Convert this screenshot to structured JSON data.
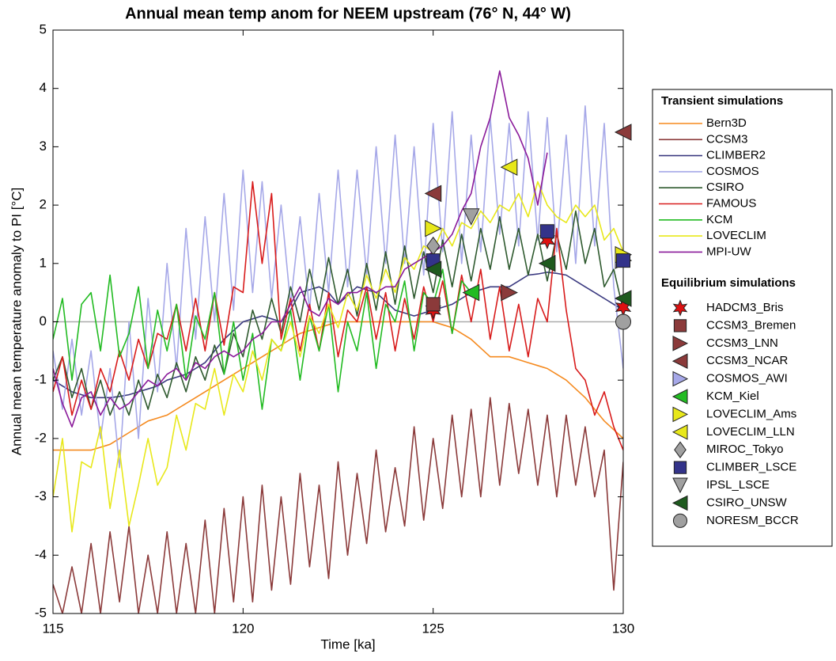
{
  "chart_data": {
    "type": "line",
    "title": "Annual mean temp anom for NEEM  upstream (76° N, 44° W)",
    "xlabel": "Time [ka]",
    "ylabel": "Annual mean temperature anomaly to PI [°C]",
    "xlim": [
      115,
      130
    ],
    "ylim": [
      -5,
      5
    ],
    "xticks": [
      115,
      120,
      125,
      130
    ],
    "yticks": [
      -5,
      -4,
      -3,
      -2,
      -1,
      0,
      1,
      2,
      3,
      4,
      5
    ],
    "reference_line": 0,
    "legend_position": "right",
    "legend_titles": [
      "Transient simulations",
      "Equilibrium simulations"
    ],
    "x": [
      115,
      115.25,
      115.5,
      115.75,
      116,
      116.25,
      116.5,
      116.75,
      117,
      117.25,
      117.5,
      117.75,
      118,
      118.25,
      118.5,
      118.75,
      119,
      119.25,
      119.5,
      119.75,
      120,
      120.25,
      120.5,
      120.75,
      121,
      121.25,
      121.5,
      121.75,
      122,
      122.25,
      122.5,
      122.75,
      123,
      123.25,
      123.5,
      123.75,
      124,
      124.25,
      124.5,
      124.75,
      125,
      125.25,
      125.5,
      125.75,
      126,
      126.25,
      126.5,
      126.75,
      127,
      127.25,
      127.5,
      127.75,
      128,
      128.25,
      128.5,
      128.75,
      129,
      129.25,
      129.5,
      129.75,
      130
    ],
    "series": [
      {
        "name": "Bern3D",
        "color": "#f58a1f",
        "values": [
          -2.2,
          -2.2,
          -2.2,
          -2.2,
          -2.2,
          -2.15,
          -2.1,
          -2.0,
          -1.9,
          -1.8,
          -1.7,
          -1.65,
          -1.6,
          -1.5,
          -1.4,
          -1.3,
          -1.2,
          -1.1,
          -1.0,
          -0.9,
          -0.8,
          -0.7,
          -0.6,
          -0.5,
          -0.4,
          -0.3,
          -0.2,
          -0.15,
          -0.1,
          -0.05,
          0,
          0,
          0,
          0,
          0,
          0,
          0,
          0,
          0,
          0,
          0,
          -0.05,
          -0.1,
          -0.2,
          -0.3,
          -0.45,
          -0.6,
          -0.6,
          -0.6,
          -0.65,
          -0.7,
          -0.75,
          -0.8,
          -0.9,
          -1.0,
          -1.15,
          -1.3,
          -1.5,
          -1.7,
          -1.85,
          -2.0
        ]
      },
      {
        "name": "CCSM3",
        "color": "#8b3a3a",
        "values": [
          -4.5,
          -5,
          -4.2,
          -5,
          -3.8,
          -5,
          -3.6,
          -4.8,
          -3.5,
          -5,
          -4,
          -5,
          -3.6,
          -5,
          -3.8,
          -5,
          -3.4,
          -5,
          -3.2,
          -4.8,
          -3,
          -4.8,
          -2.8,
          -4.6,
          -3,
          -4.5,
          -2.6,
          -4.2,
          -2.8,
          -4.4,
          -2.4,
          -4,
          -2.6,
          -3.8,
          -2.2,
          -3.6,
          -2.5,
          -3.5,
          -1.8,
          -3.4,
          -2,
          -3.2,
          -1.6,
          -3,
          -1.5,
          -3,
          -1.3,
          -2.8,
          -1.4,
          -2.6,
          -1.5,
          -2.8,
          -1.6,
          -3,
          -1.6,
          -2.8,
          -1.8,
          -3,
          -2.2,
          -4.6,
          -2.4
        ]
      },
      {
        "name": "CLIMBER2",
        "color": "#3b3a80",
        "values": [
          -1,
          -1.1,
          -1.2,
          -1.25,
          -1.3,
          -1.3,
          -1.3,
          -1.28,
          -1.25,
          -1.2,
          -1.15,
          -1.1,
          -1.0,
          -0.95,
          -0.9,
          -0.8,
          -0.7,
          -0.5,
          -0.3,
          -0.15,
          0,
          0.05,
          0.1,
          0.05,
          0,
          0.2,
          0.5,
          0.55,
          0.6,
          0.5,
          0.3,
          0.45,
          0.6,
          0.55,
          0.5,
          0.35,
          0.2,
          0.15,
          0.1,
          0.15,
          0.2,
          0.25,
          0.3,
          0.4,
          0.5,
          0.55,
          0.6,
          0.6,
          0.6,
          0.7,
          0.8,
          0.82,
          0.85,
          0.83,
          0.8,
          0.7,
          0.6,
          0.5,
          0.4,
          0.3,
          0.2
        ]
      },
      {
        "name": "COSMOS",
        "color": "#a6a8e8",
        "values": [
          -0.5,
          -1.5,
          -0.3,
          -1.6,
          -0.5,
          -2,
          -0.8,
          -2.5,
          0,
          -2,
          0.4,
          -1.2,
          1,
          -0.8,
          1.6,
          -0.3,
          1.8,
          0,
          2.2,
          0.2,
          2.6,
          0.5,
          2.4,
          0.4,
          2.0,
          0.3,
          1.8,
          0.2,
          2.2,
          0.5,
          2.6,
          0.6,
          2.6,
          0.8,
          3.0,
          1.0,
          3.2,
          1.0,
          3.0,
          0.8,
          3.4,
          1.2,
          3.6,
          1.0,
          3.2,
          1.2,
          3.5,
          1.5,
          3.4,
          1.3,
          3.6,
          1.4,
          3.5,
          1.2,
          3.2,
          1.0,
          3.7,
          1.3,
          3.4,
          0.6,
          -0.8
        ]
      },
      {
        "name": "CSIRO",
        "color": "#2f5a2f",
        "values": [
          -1.0,
          -0.6,
          -1.3,
          -0.8,
          -1.5,
          -1.0,
          -1.6,
          -1.2,
          -1.6,
          -1.0,
          -1.5,
          -0.9,
          -1.3,
          -0.7,
          -1.2,
          -0.6,
          -1.0,
          -0.4,
          -0.9,
          -0.2,
          -0.6,
          0.2,
          -0.3,
          0.4,
          -0.2,
          0.6,
          0,
          0.9,
          0.2,
          1.1,
          0.3,
          0.9,
          0.1,
          1.0,
          0.2,
          1.2,
          0.3,
          1.3,
          0.4,
          1.2,
          0.5,
          1.4,
          0.6,
          1.5,
          0.7,
          1.6,
          0.9,
          1.8,
          0.9,
          1.6,
          0.8,
          1.5,
          0.7,
          1.5,
          0.9,
          1.9,
          1.0,
          1.6,
          0.6,
          0.9,
          0.2
        ]
      },
      {
        "name": "FAMOUS",
        "color": "#d81b1b",
        "values": [
          -1.2,
          -0.6,
          -1.6,
          -1.0,
          -1.5,
          -0.8,
          -1.2,
          -0.5,
          -1.0,
          -0.3,
          -0.8,
          -0.2,
          -0.3,
          0.3,
          -0.5,
          0.4,
          -0.5,
          0.5,
          -0.4,
          0.6,
          0.5,
          2.4,
          1.0,
          2.2,
          -0.3,
          0.4,
          -0.5,
          0.3,
          -0.5,
          0.5,
          -0.6,
          0.2,
          0,
          0.6,
          -0.3,
          0.5,
          -0.5,
          0.4,
          -0.3,
          0.6,
          0,
          0.7,
          -0.2,
          0.8,
          0,
          0.9,
          -0.3,
          0.6,
          -0.5,
          0.3,
          -0.6,
          0.4,
          0,
          1.6,
          0.2,
          -0.8,
          -1,
          -1.6,
          -1.2,
          -1.8,
          -2.2
        ]
      },
      {
        "name": "KCM",
        "color": "#22bb22",
        "values": [
          -0.3,
          0.4,
          -1.0,
          0.3,
          0.5,
          -0.5,
          0.8,
          -0.6,
          -0.2,
          0.6,
          -0.8,
          0.2,
          -0.5,
          0.3,
          -1.0,
          0.1,
          -0.3,
          0.5,
          -0.9,
          0,
          -1,
          -0.2,
          -1.5,
          -0.3,
          -0.5,
          0.2,
          -1.0,
          0.1,
          -0.5,
          0.3,
          -1.2,
          0,
          -0.5,
          0.5,
          -0.8,
          0.3,
          0,
          0.7,
          -0.5,
          0.5,
          0.3,
          0.9,
          -0.2,
          0.7,
          0.5,
          null,
          null,
          null,
          null,
          null,
          null,
          null,
          null,
          null,
          null,
          null,
          null,
          null,
          null,
          null,
          null
        ]
      },
      {
        "name": "LOVECLIM",
        "color": "#e8e81a",
        "values": [
          -3,
          -2,
          -3.6,
          -2.4,
          -2.5,
          -1.8,
          -3.2,
          -2.2,
          -3.5,
          -2.8,
          -2.0,
          -2.8,
          -2.5,
          -1.6,
          -2.2,
          -1.4,
          -1.5,
          -0.8,
          -1.6,
          -0.9,
          -1.2,
          -0.5,
          -1.0,
          -0.3,
          -0.5,
          0,
          -0.6,
          0.1,
          -0.2,
          0.3,
          -0.1,
          0.5,
          0.2,
          0.8,
          0.4,
          0.9,
          0.5,
          1.1,
          0.9,
          1.3,
          1.2,
          1.6,
          1.3,
          1.7,
          1.6,
          1.9,
          1.7,
          2.0,
          1.9,
          2.2,
          1.8,
          2.4,
          2.0,
          1.8,
          1.7,
          2.0,
          1.8,
          2.0,
          1.4,
          1.6,
          1.2
        ]
      },
      {
        "name": "MPI-UW",
        "color": "#8a1a9a",
        "values": [
          -0.8,
          -1.4,
          -1.8,
          -1.3,
          -1.2,
          -1.6,
          -1.3,
          -1.5,
          -1.4,
          -1.2,
          -1.0,
          -1.1,
          -0.9,
          -0.8,
          -1.0,
          -0.7,
          -0.8,
          -0.6,
          -0.5,
          -0.6,
          -0.5,
          -0.3,
          -0.2,
          0,
          0,
          0.3,
          0.6,
          0.2,
          0.1,
          0.4,
          0.3,
          0.5,
          0.5,
          0.6,
          0.5,
          0.6,
          0.6,
          0.9,
          1.0,
          1.1,
          1.2,
          1.3,
          1.5,
          1.9,
          2.2,
          3.0,
          3.5,
          4.3,
          3.5,
          3.2,
          2.8,
          2.0,
          2.9,
          null,
          null,
          null,
          null,
          null,
          null,
          null,
          null
        ]
      }
    ],
    "markers": [
      {
        "name": "HADCM3_Bris",
        "color": "#dd1111",
        "marker": "star",
        "x": [
          125,
          128,
          130
        ],
        "values": [
          0.2,
          1.4,
          0.25
        ]
      },
      {
        "name": "CCSM3_Bremen",
        "color": "#8b3a3a",
        "marker": "square",
        "x": [
          125
        ],
        "values": [
          0.3
        ]
      },
      {
        "name": "CCSM3_LNN",
        "color": "#8b3a3a",
        "marker": "triangle-right",
        "x": [
          127
        ],
        "values": [
          0.5
        ]
      },
      {
        "name": "CCSM3_NCAR",
        "color": "#8b3a3a",
        "marker": "triangle-left",
        "x": [
          125,
          130
        ],
        "values": [
          2.2,
          3.25
        ]
      },
      {
        "name": "COSMOS_AWI",
        "color": "#a6a8e8",
        "marker": "triangle-right",
        "x": [
          130
        ],
        "values": [
          1.05
        ]
      },
      {
        "name": "KCM_Kiel",
        "color": "#22bb22",
        "marker": "triangle-left",
        "x": [
          126
        ],
        "values": [
          0.5
        ]
      },
      {
        "name": "LOVECLIM_Ams",
        "color": "#e8e81a",
        "marker": "triangle-right",
        "x": [
          125,
          130
        ],
        "values": [
          1.6,
          1.15
        ]
      },
      {
        "name": "LOVECLIM_LLN",
        "color": "#e8e81a",
        "marker": "triangle-left",
        "x": [
          127
        ],
        "values": [
          2.65
        ]
      },
      {
        "name": "MIROC_Tokyo",
        "color": "#a0a0a0",
        "marker": "diamond",
        "x": [
          125
        ],
        "values": [
          1.3
        ]
      },
      {
        "name": "CLIMBER_LSCE",
        "color": "#33338a",
        "marker": "square",
        "x": [
          125,
          128,
          130
        ],
        "values": [
          1.05,
          1.55,
          1.05
        ]
      },
      {
        "name": "IPSL_LSCE",
        "color": "#a0a0a0",
        "marker": "triangle-down",
        "x": [
          126
        ],
        "values": [
          1.8
        ]
      },
      {
        "name": "CSIRO_UNSW",
        "color": "#1e5a1e",
        "marker": "triangle-left",
        "x": [
          125,
          128,
          130
        ],
        "values": [
          0.9,
          1.0,
          0.4
        ]
      },
      {
        "name": "NORESM_BCCR",
        "color": "#a0a0a0",
        "marker": "circle",
        "x": [
          130
        ],
        "values": [
          0.0
        ]
      }
    ]
  }
}
